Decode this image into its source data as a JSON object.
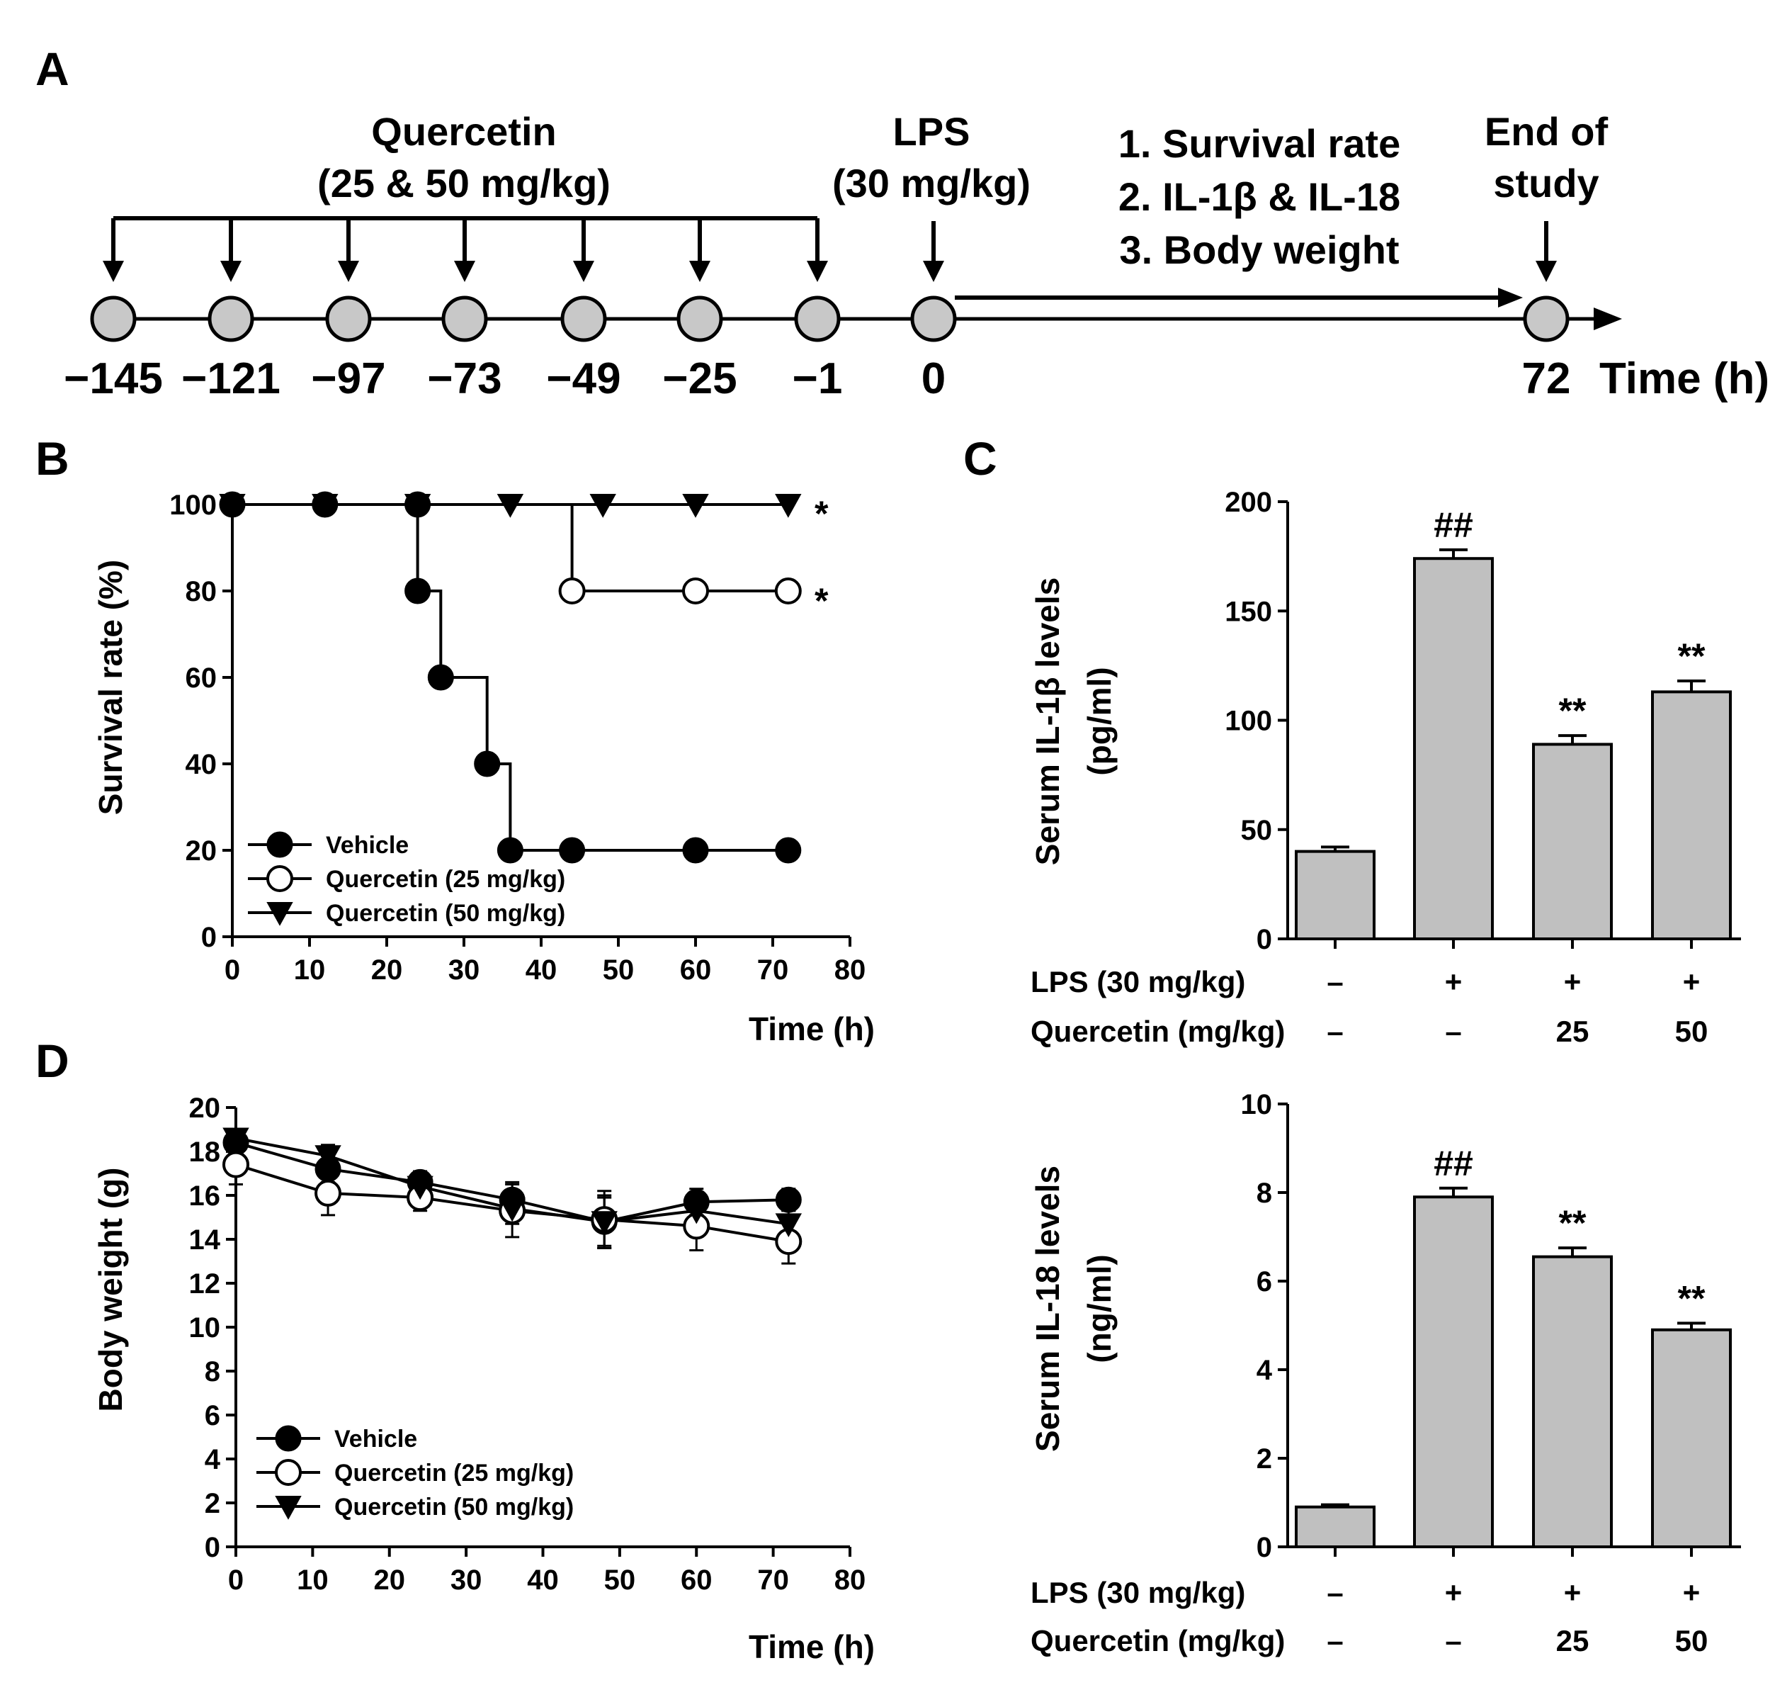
{
  "panels": {
    "A": {
      "letter": "A",
      "quercetin_title": "Quercetin",
      "quercetin_dose": "(25 & 50 mg/kg)",
      "lps_title": "LPS",
      "lps_dose": "(30 mg/kg)",
      "outcomes": [
        "1. Survival rate",
        "2. IL-1β & IL-18",
        "3. Body weight"
      ],
      "end_title": "End of",
      "end_title2": "study",
      "time_points": [
        -145,
        -121,
        -97,
        -73,
        -49,
        -25,
        -1,
        0,
        72
      ],
      "time_labels": [
        "−145",
        "−121",
        "−97",
        "−73",
        "−49",
        "−25",
        "−1",
        "0",
        "72"
      ],
      "time_axis_label": "Time (h)"
    },
    "B": {
      "letter": "B",
      "ylabel": "Survival rate (%)",
      "xlabel": "Time (h)",
      "legend": [
        "Vehicle",
        "Quercetin (25 mg/kg)",
        "Quercetin (50 mg/kg)"
      ],
      "annotations": [
        "*",
        "*"
      ]
    },
    "C": {
      "letter": "C",
      "ylabel_line1": "Serum IL-1β levels",
      "ylabel_line2": "(pg/ml)",
      "row1_label": "LPS (30 mg/kg)",
      "row2_label": "Quercetin (mg/kg)",
      "row1_values": [
        "–",
        "+",
        "+",
        "+"
      ],
      "row2_values": [
        "–",
        "–",
        "25",
        "50"
      ],
      "sig_labels": [
        "",
        "##",
        "**",
        "**"
      ]
    },
    "C2": {
      "ylabel_line1": "Serum IL-18 levels",
      "ylabel_line2": "(ng/ml)",
      "row1_label": "LPS (30 mg/kg)",
      "row2_label": "Quercetin (mg/kg)",
      "row1_values": [
        "–",
        "+",
        "+",
        "+"
      ],
      "row2_values": [
        "–",
        "–",
        "25",
        "50"
      ],
      "sig_labels": [
        "",
        "##",
        "**",
        "**"
      ]
    },
    "D": {
      "letter": "D",
      "ylabel": "Body weight (g)",
      "xlabel": "Time (h)",
      "legend": [
        "Vehicle",
        "Quercetin (25 mg/kg)",
        "Quercetin (50 mg/kg)"
      ]
    }
  },
  "chart_data": [
    {
      "id": "B",
      "type": "line",
      "step": true,
      "xlabel": "Time (h)",
      "ylabel": "Survival rate (%)",
      "xlim": [
        0,
        80
      ],
      "ylim": [
        0,
        100
      ],
      "xticks": [
        0,
        10,
        20,
        30,
        40,
        50,
        60,
        70,
        80
      ],
      "yticks": [
        0,
        20,
        40,
        60,
        80,
        100
      ],
      "legend_position": "bottom-left",
      "series": [
        {
          "name": "Vehicle",
          "marker": "filled-circle",
          "x": [
            0,
            12,
            24,
            24,
            27,
            33,
            36,
            44,
            60,
            72
          ],
          "y": [
            100,
            100,
            100,
            80,
            60,
            40,
            20,
            20,
            20,
            20
          ]
        },
        {
          "name": "Quercetin (25 mg/kg)",
          "marker": "open-circle",
          "x": [
            0,
            12,
            24,
            36,
            44,
            60,
            72
          ],
          "y": [
            100,
            100,
            100,
            100,
            80,
            80,
            80
          ]
        },
        {
          "name": "Quercetin (50 mg/kg)",
          "marker": "filled-triangle-down",
          "x": [
            0,
            12,
            24,
            36,
            48,
            60,
            72
          ],
          "y": [
            100,
            100,
            100,
            100,
            100,
            100,
            100
          ]
        }
      ]
    },
    {
      "id": "C-IL1b",
      "type": "bar",
      "ylabel": "Serum IL-1β levels (pg/ml)",
      "ylim": [
        0,
        200
      ],
      "yticks": [
        0,
        50,
        100,
        150,
        200
      ],
      "values": [
        40,
        174,
        89,
        113
      ],
      "errors": [
        2,
        4,
        4,
        5
      ],
      "sig_labels": [
        "",
        "##",
        "**",
        "**"
      ],
      "bar_color": "#c0c0c0"
    },
    {
      "id": "C-IL18",
      "type": "bar",
      "ylabel": "Serum IL-18 levels (ng/ml)",
      "ylim": [
        0,
        10
      ],
      "yticks": [
        0,
        2,
        4,
        6,
        8,
        10
      ],
      "values": [
        0.9,
        7.9,
        6.55,
        4.9
      ],
      "errors": [
        0.05,
        0.2,
        0.2,
        0.15
      ],
      "sig_labels": [
        "",
        "##",
        "**",
        "**"
      ],
      "bar_color": "#c0c0c0"
    },
    {
      "id": "D",
      "type": "line",
      "xlabel": "Time (h)",
      "ylabel": "Body weight (g)",
      "xlim": [
        0,
        80
      ],
      "ylim": [
        0,
        20
      ],
      "xticks": [
        0,
        10,
        20,
        30,
        40,
        50,
        60,
        70,
        80
      ],
      "yticks": [
        0,
        2,
        4,
        6,
        8,
        10,
        12,
        14,
        16,
        18,
        20
      ],
      "legend_position": "bottom-left",
      "series": [
        {
          "name": "Vehicle",
          "marker": "filled-circle",
          "x": [
            0,
            12,
            24,
            36,
            48,
            60,
            72
          ],
          "y": [
            18.4,
            17.2,
            16.6,
            15.8,
            14.8,
            15.7,
            15.8
          ],
          "err": [
            0.5,
            0.6,
            0.5,
            0.8,
            1.2,
            0.6,
            0.5
          ]
        },
        {
          "name": "Quercetin (25 mg/kg)",
          "marker": "open-circle",
          "x": [
            0,
            12,
            24,
            36,
            48,
            60,
            72
          ],
          "y": [
            17.4,
            16.1,
            15.9,
            15.3,
            14.9,
            14.6,
            13.9
          ],
          "err": [
            0.9,
            1.0,
            0.6,
            1.2,
            1.3,
            1.1,
            1.0
          ]
        },
        {
          "name": "Quercetin (50 mg/kg)",
          "marker": "filled-triangle-down",
          "x": [
            0,
            12,
            24,
            36,
            48,
            60,
            72
          ],
          "y": [
            18.6,
            17.8,
            16.4,
            15.4,
            14.8,
            15.3,
            14.7
          ],
          "err": [
            0.4,
            0.5,
            0.5,
            0.7,
            1.1,
            0.6,
            0.6
          ]
        }
      ]
    }
  ]
}
